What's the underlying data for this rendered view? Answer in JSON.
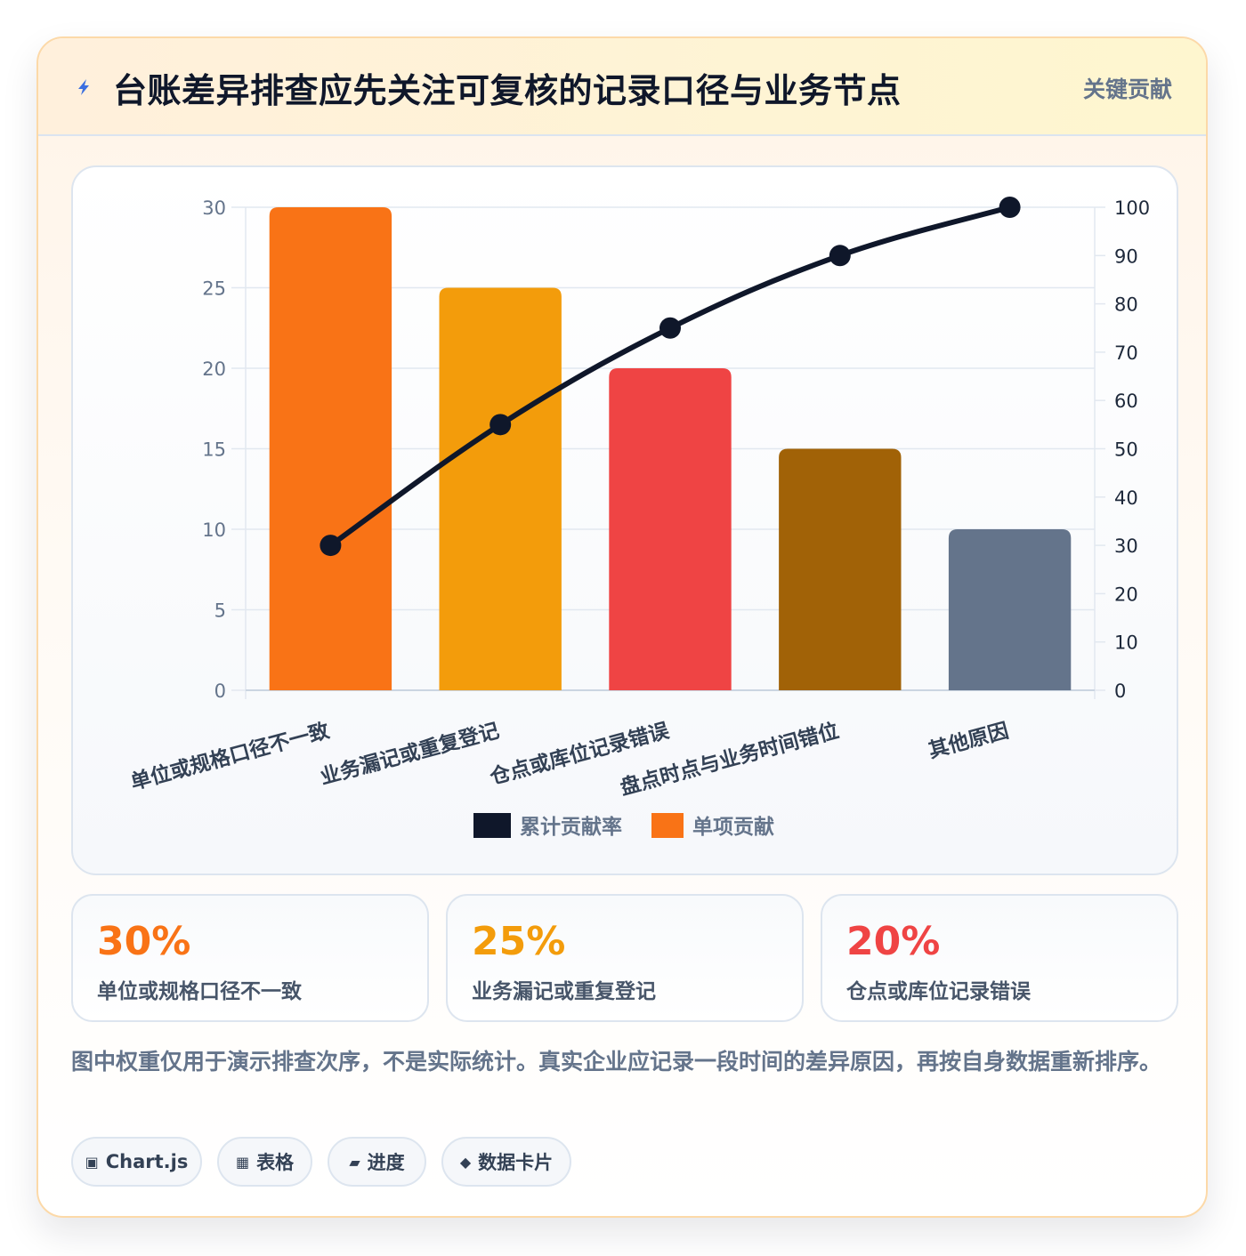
{
  "header": {
    "title": "台账差异排查应先关注可复核的记录口径与业务节点",
    "badge": "关键贡献",
    "icon": "lightning-icon"
  },
  "chart_data": {
    "type": "bar",
    "categories": [
      "单位或规格口径不一致",
      "业务漏记或重复登记",
      "仓点或库位记录错误",
      "盘点时点与业务时间错位",
      "其他原因"
    ],
    "series": [
      {
        "name": "单项贡献",
        "type": "bar",
        "axis": "left",
        "values": [
          30,
          25,
          20,
          15,
          10
        ],
        "colors": [
          "#f97316",
          "#f39c0b",
          "#ef4444",
          "#a16207",
          "#64748b"
        ]
      },
      {
        "name": "累计贡献率",
        "type": "line",
        "axis": "right",
        "values": [
          30,
          55,
          75,
          90,
          100
        ],
        "color": "#0f172a"
      }
    ],
    "y_left": {
      "min": 0,
      "max": 30,
      "ticks": [
        0,
        5,
        10,
        15,
        20,
        25,
        30
      ]
    },
    "y_right": {
      "min": 0,
      "max": 100,
      "ticks": [
        0,
        10,
        20,
        30,
        40,
        50,
        60,
        70,
        80,
        90,
        100
      ]
    },
    "legend": [
      {
        "label": "累计贡献率",
        "color": "#0f172a"
      },
      {
        "label": "单项贡献",
        "color": "#f97316"
      }
    ],
    "legend_position": "bottom",
    "grid": true
  },
  "stats": [
    {
      "value": "30%",
      "label": "单位或规格口径不一致",
      "color": "#f97316"
    },
    {
      "value": "25%",
      "label": "业务漏记或重复登记",
      "color": "#f39c0b"
    },
    {
      "value": "20%",
      "label": "仓点或库位记录错误",
      "color": "#ef4444"
    }
  ],
  "note": "图中权重仅用于演示排查次序，不是实际统计。真实企业应记录一段时间的差异原因，再按自身数据重新排序。",
  "tags": [
    {
      "icon": "chart-icon",
      "glyph": "▣",
      "label": "Chart.js"
    },
    {
      "icon": "table-icon",
      "glyph": "▦",
      "label": "表格"
    },
    {
      "icon": "progress-icon",
      "glyph": "▰",
      "label": "进度"
    },
    {
      "icon": "card-icon",
      "glyph": "◆",
      "label": "数据卡片"
    }
  ]
}
